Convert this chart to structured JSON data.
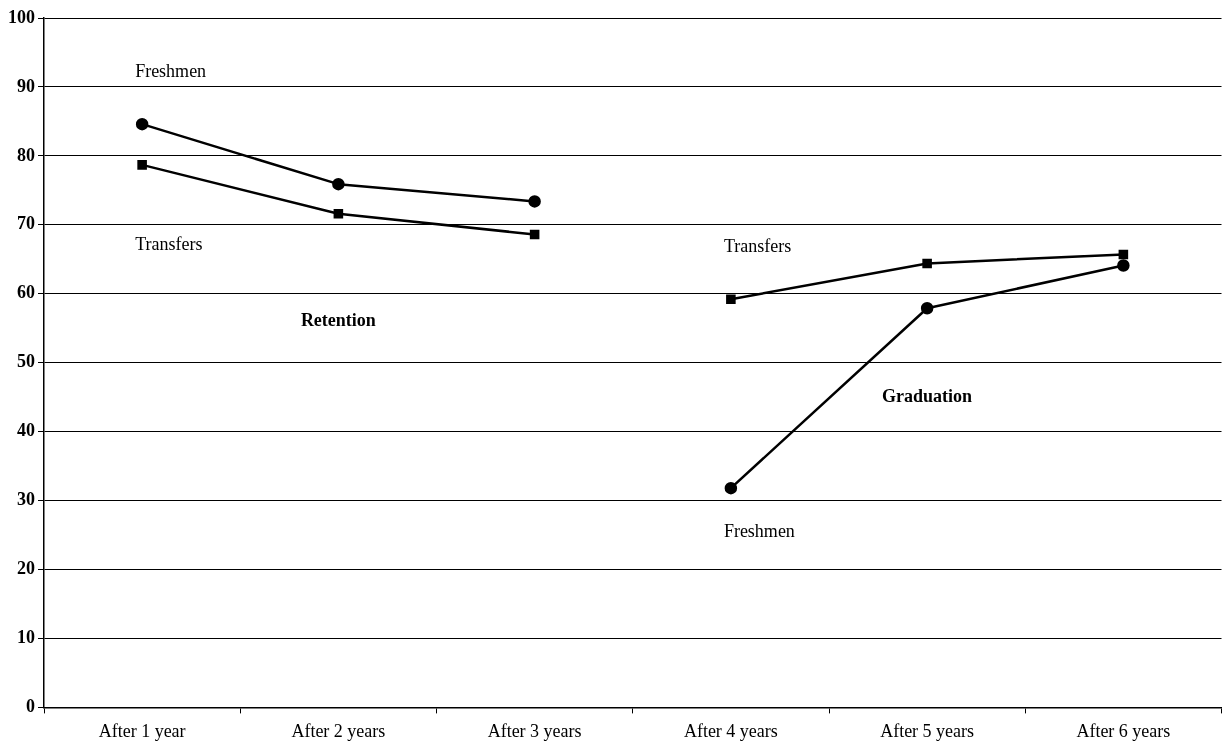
{
  "chart_data": {
    "type": "line",
    "categories": [
      "After 1 year",
      "After 2 years",
      "After 3 years",
      "After 4 years",
      "After 5 years",
      "After 6 years"
    ],
    "series": [
      {
        "name": "Freshmen",
        "color": "#000000",
        "marker": "circle",
        "values": [
          84.6,
          75.9,
          73.4,
          null,
          null,
          null
        ]
      },
      {
        "name": "Transfers",
        "color": "#000000",
        "marker": "square",
        "values": [
          78.7,
          71.6,
          68.6,
          null,
          null,
          null
        ]
      },
      {
        "name": "Transfers",
        "color": "#000000",
        "marker": "square",
        "values": [
          null,
          null,
          null,
          59.2,
          64.4,
          65.7
        ]
      },
      {
        "name": "Freshmen",
        "color": "#000000",
        "marker": "circle",
        "values": [
          null,
          null,
          null,
          31.8,
          57.9,
          64.1
        ]
      }
    ],
    "annotations": [
      "Retention",
      "Graduation"
    ],
    "ylim": [
      0,
      100
    ],
    "yticks": [
      0,
      10,
      20,
      30,
      40,
      50,
      60,
      70,
      80,
      90,
      100
    ],
    "grid": "y",
    "legend": false,
    "line_style": "solid"
  }
}
